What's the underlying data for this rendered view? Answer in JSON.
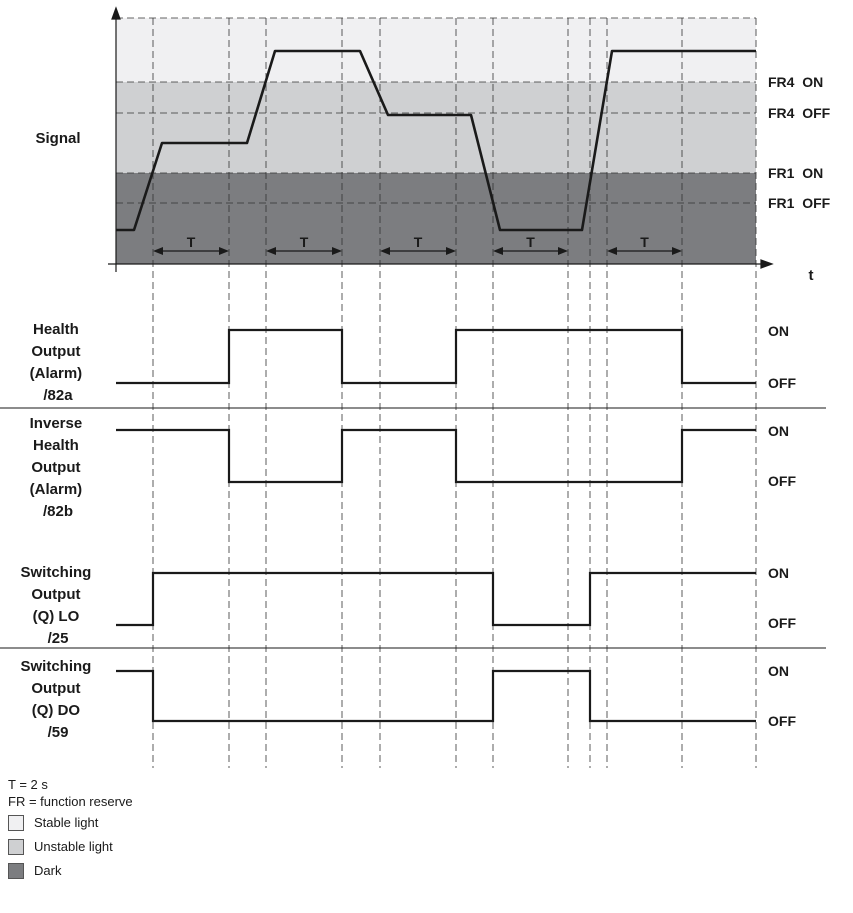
{
  "signal": {
    "label": "Signal",
    "time_label": "t",
    "threshold_labels": [
      "FR4  ON",
      "FR4  OFF",
      "FR1  ON",
      "FR1  OFF"
    ],
    "period_label": "T"
  },
  "tracks": [
    {
      "id": "health",
      "label_lines": [
        "Health",
        "Output",
        "(Alarm)",
        "/82a"
      ],
      "on_label": "ON",
      "off_label": "OFF"
    },
    {
      "id": "inverse",
      "label_lines": [
        "Inverse",
        "Health",
        "Output",
        "(Alarm)",
        "/82b"
      ],
      "on_label": "ON",
      "off_label": "OFF"
    },
    {
      "id": "lo",
      "label_lines": [
        "Switching",
        "Output",
        "(Q) LO",
        "/25"
      ],
      "on_label": "ON",
      "off_label": "OFF"
    },
    {
      "id": "do",
      "label_lines": [
        "Switching",
        "Output",
        "(Q) DO",
        "/59"
      ],
      "on_label": "ON",
      "off_label": "OFF"
    }
  ],
  "legend": {
    "t_note": "T = 2 s",
    "fr_note": "FR = function reserve",
    "items": [
      {
        "key": "stable",
        "label": "Stable light"
      },
      {
        "key": "unstable",
        "label": "Unstable light"
      },
      {
        "key": "dark",
        "label": "Dark"
      }
    ]
  },
  "colors": {
    "stable_light": "#f0f0f2",
    "unstable_light": "#cfd0d2",
    "dark": "#7c7d80",
    "line": "#1a1a1a"
  }
}
